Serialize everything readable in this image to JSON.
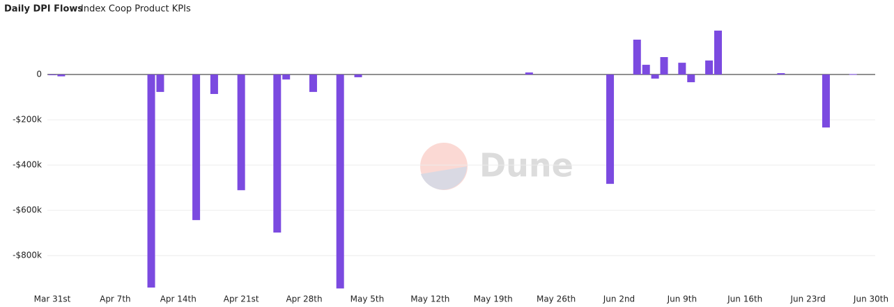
{
  "chart_data": {
    "type": "bar",
    "title": "Daily DPI Flows",
    "subtitle": "Index Coop Product KPIs",
    "watermark": "Dune",
    "color": "#7b4ae0",
    "grid": true,
    "ylim": [
      -950000,
      200000
    ],
    "yticks": [
      0,
      {
        "value": -200000,
        "label": "-$200k"
      },
      {
        "value": -400000,
        "label": "-$400k"
      },
      {
        "value": -600000,
        "label": "-$600k"
      },
      {
        "value": -800000,
        "label": "-$800k"
      }
    ],
    "categories": [
      "Mar 31st",
      null,
      null,
      null,
      null,
      null,
      null,
      "Apr 7th",
      null,
      null,
      null,
      null,
      null,
      null,
      "Apr 14th",
      null,
      null,
      null,
      null,
      null,
      null,
      "Apr 21st",
      null,
      null,
      null,
      null,
      null,
      null,
      "Apr 28th",
      null,
      null,
      null,
      null,
      null,
      null,
      "May 5th",
      null,
      null,
      null,
      null,
      null,
      null,
      "May 12th",
      null,
      null,
      null,
      null,
      null,
      null,
      "May 19th",
      null,
      null,
      null,
      null,
      null,
      null,
      "May 26th",
      null,
      null,
      null,
      null,
      null,
      null,
      "Jun 2nd",
      null,
      null,
      null,
      null,
      null,
      null,
      "Jun 9th",
      null,
      null,
      null,
      null,
      null,
      null,
      "Jun 16th",
      null,
      null,
      null,
      null,
      null,
      null,
      "Jun 23rd",
      null,
      null,
      null,
      null,
      null,
      null,
      "Jun 30th"
    ],
    "values": [
      -3000,
      -8000,
      null,
      null,
      null,
      null,
      null,
      null,
      null,
      null,
      null,
      -941000,
      -77000,
      null,
      null,
      null,
      -643000,
      null,
      -86000,
      null,
      null,
      -511000,
      null,
      null,
      null,
      -698000,
      -22000,
      null,
      null,
      -77000,
      null,
      null,
      -945000,
      null,
      -12000,
      null,
      null,
      null,
      null,
      null,
      null,
      null,
      null,
      null,
      null,
      null,
      null,
      null,
      null,
      null,
      null,
      null,
      null,
      9000,
      null,
      null,
      null,
      null,
      null,
      null,
      null,
      null,
      -483000,
      null,
      null,
      154000,
      43000,
      -18000,
      77000,
      null,
      52000,
      -34000,
      null,
      62000,
      194000,
      null,
      null,
      null,
      null,
      null,
      null,
      6000,
      null,
      null,
      null,
      null,
      -234000,
      null,
      null,
      2000,
      null,
      null
    ]
  }
}
